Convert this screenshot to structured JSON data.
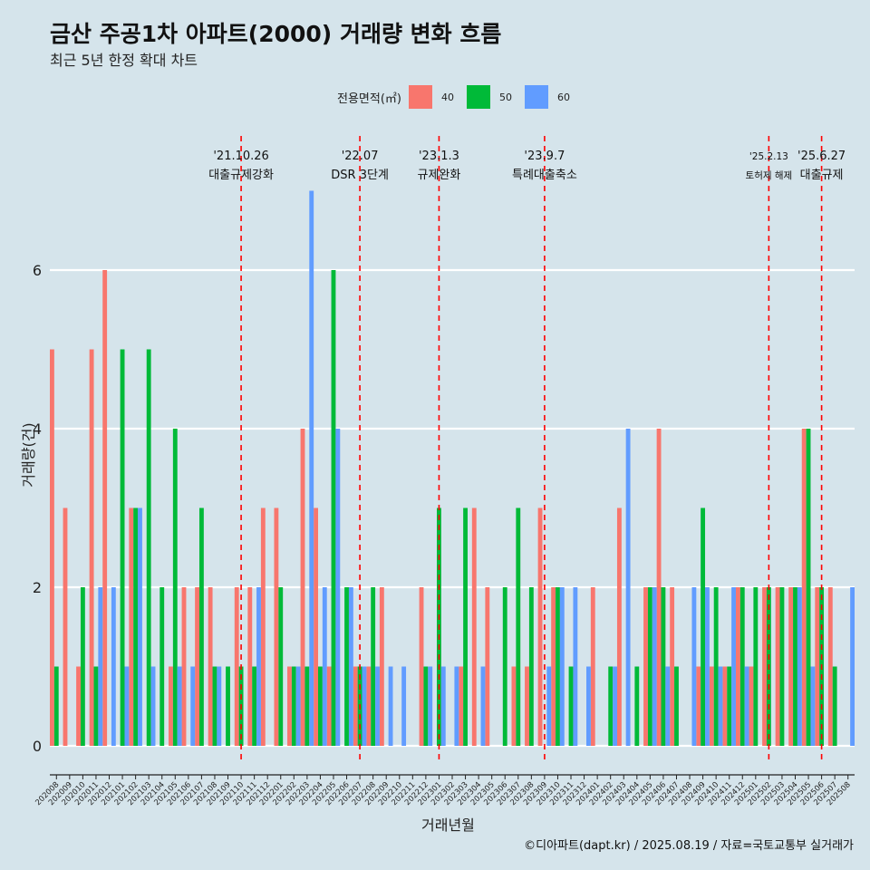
{
  "header": {
    "title": "금산 주공1차 아파트(2000) 거래량 변화 흐름",
    "subtitle": "최근 5년 한정 확대 차트"
  },
  "legend": {
    "title": "전용면적(㎡)",
    "items": [
      {
        "label": "40",
        "color": "#F8766D"
      },
      {
        "label": "50",
        "color": "#00BA38"
      },
      {
        "label": "60",
        "color": "#619CFF"
      }
    ]
  },
  "caption": "©디아파트(dapt.kr) / 2025.08.19 / 자료=국토교통부 실거래가",
  "chart_data": {
    "type": "bar",
    "xlabel": "거래년월",
    "ylabel": "거래량(건)",
    "ylim": [
      0,
      7
    ],
    "yticks": [
      0,
      2,
      4,
      6
    ],
    "grid": true,
    "legend_position": "top",
    "categories": [
      "202008",
      "202009",
      "202010",
      "202011",
      "202012",
      "202101",
      "202102",
      "202103",
      "202104",
      "202105",
      "202106",
      "202107",
      "202108",
      "202109",
      "202110",
      "202111",
      "202112",
      "202201",
      "202202",
      "202203",
      "202204",
      "202205",
      "202206",
      "202207",
      "202208",
      "202209",
      "202210",
      "202211",
      "202212",
      "202301",
      "202302",
      "202303",
      "202304",
      "202305",
      "202306",
      "202307",
      "202308",
      "202309",
      "202310",
      "202311",
      "202312",
      "202401",
      "202402",
      "202403",
      "202404",
      "202405",
      "202406",
      "202407",
      "202408",
      "202409",
      "202410",
      "202411",
      "202412",
      "202501",
      "202502",
      "202503",
      "202504",
      "202505",
      "202506",
      "202507",
      "202508"
    ],
    "series": [
      {
        "name": "40",
        "color": "#F8766D",
        "values": [
          5,
          3,
          1,
          5,
          6,
          0,
          3,
          0,
          0,
          1,
          2,
          2,
          2,
          0,
          2,
          2,
          3,
          3,
          1,
          4,
          3,
          1,
          0,
          1,
          1,
          2,
          0,
          0,
          2,
          0,
          0,
          1,
          3,
          2,
          0,
          1,
          1,
          3,
          2,
          0,
          0,
          2,
          0,
          3,
          0,
          2,
          4,
          2,
          0,
          1,
          1,
          1,
          2,
          1,
          2,
          2,
          2,
          4,
          2,
          2,
          0
        ]
      },
      {
        "name": "50",
        "color": "#00BA38",
        "values": [
          1,
          0,
          2,
          1,
          0,
          5,
          3,
          5,
          2,
          4,
          0,
          3,
          1,
          1,
          1,
          1,
          0,
          2,
          1,
          1,
          1,
          6,
          2,
          1,
          2,
          0,
          0,
          0,
          1,
          3,
          0,
          3,
          0,
          0,
          2,
          3,
          2,
          0,
          2,
          1,
          0,
          0,
          1,
          0,
          1,
          2,
          2,
          1,
          0,
          3,
          2,
          1,
          2,
          2,
          2,
          2,
          2,
          4,
          2,
          1,
          0
        ]
      },
      {
        "name": "60",
        "color": "#619CFF",
        "values": [
          0,
          0,
          0,
          2,
          2,
          1,
          3,
          1,
          0,
          1,
          1,
          0,
          1,
          0,
          0,
          2,
          0,
          0,
          1,
          7,
          2,
          4,
          2,
          1,
          1,
          1,
          1,
          0,
          1,
          1,
          1,
          0,
          1,
          0,
          0,
          0,
          0,
          1,
          2,
          2,
          1,
          0,
          1,
          4,
          0,
          2,
          1,
          0,
          2,
          2,
          1,
          2,
          1,
          0,
          0,
          0,
          2,
          1,
          0,
          0,
          2
        ]
      }
    ],
    "annotations": [
      {
        "date": "'21.10.26",
        "label": "대출규제강화",
        "category_index": 14.5
      },
      {
        "date": "'22.07",
        "label": "DSR 3단계",
        "category_index": 23.5
      },
      {
        "date": "'23.1.3",
        "label": "규제완화",
        "category_index": 29.5
      },
      {
        "date": "'23.9.7",
        "label": "특례대출축소",
        "category_index": 37.5
      },
      {
        "date": "'25.2.13",
        "label": "토허제 해제",
        "category_index": 54.5
      },
      {
        "date": "'25.6.27",
        "label": "대출규제",
        "category_index": 58.5
      }
    ]
  }
}
